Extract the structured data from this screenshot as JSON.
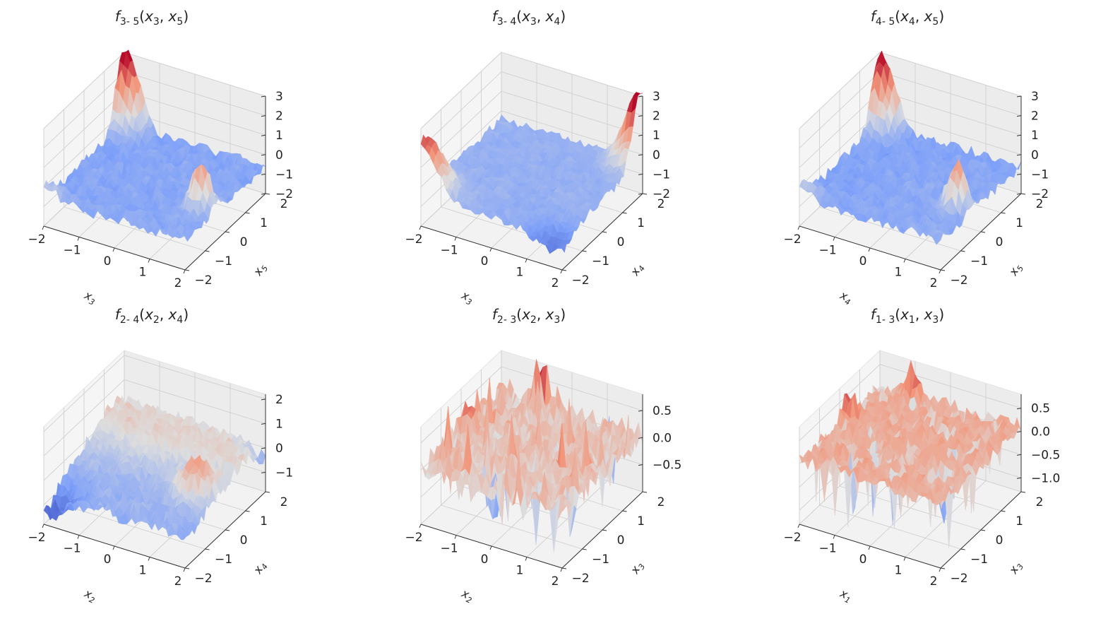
{
  "figure": {
    "title": ""
  },
  "chart_data": [
    {
      "type": "surface3d",
      "title_func": "f",
      "title_sub": "3- 5",
      "title_args": [
        "x",
        "3",
        "x",
        "5"
      ],
      "title": "f3- 5(x3, x5)",
      "xlabel": "x3",
      "ylabel": "x5",
      "zlabel": "",
      "xticks": [
        "−2",
        "−1",
        "0",
        "1",
        "2"
      ],
      "yticks": [
        "−2",
        "−1",
        "0",
        "1",
        "2"
      ],
      "zticks": [
        "−2",
        "−1",
        "0",
        "1",
        "2",
        "3"
      ],
      "xlim": [
        -2,
        2
      ],
      "ylim": [
        -2,
        2
      ],
      "zlim": [
        -2,
        3
      ],
      "shape": "corner_spikes_back_and_right",
      "peaks": [
        {
          "x": -2,
          "y": 2,
          "z": 3.4
        },
        {
          "x": 1.5,
          "y": -0.5,
          "z": 1.3
        }
      ],
      "colormap": "coolwarm"
    },
    {
      "type": "surface3d",
      "title_func": "f",
      "title_sub": "3- 4",
      "title_args": [
        "x",
        "3",
        "x",
        "4"
      ],
      "title": "f3- 4(x3, x4)",
      "xlabel": "x3",
      "ylabel": "x4",
      "zlabel": "",
      "xticks": [
        "−2",
        "−1",
        "0",
        "1",
        "2"
      ],
      "yticks": [
        "−2",
        "−1",
        "0",
        "1",
        "2"
      ],
      "zticks": [
        "−2",
        "−1",
        "0",
        "1",
        "2",
        "3"
      ],
      "xlim": [
        -2,
        2
      ],
      "ylim": [
        -2,
        2
      ],
      "zlim": [
        -2,
        3
      ],
      "shape": "valley_with_raised_ends",
      "peaks": [
        {
          "x": -2,
          "y": -2,
          "z": 1.8
        },
        {
          "x": 2,
          "y": 2,
          "z": 3.0
        }
      ],
      "colormap": "coolwarm"
    },
    {
      "type": "surface3d",
      "title_func": "f",
      "title_sub": "4- 5",
      "title_args": [
        "x",
        "4",
        "x",
        "5"
      ],
      "title": "f4- 5(x4, x5)",
      "xlabel": "x4",
      "ylabel": "x5",
      "zlabel": "",
      "xticks": [
        "−2",
        "−1",
        "0",
        "1",
        "2"
      ],
      "yticks": [
        "−2",
        "−1",
        "0",
        "1",
        "2"
      ],
      "zticks": [
        "−2",
        "−1",
        "0",
        "1",
        "2",
        "3"
      ],
      "xlim": [
        -2,
        2
      ],
      "ylim": [
        -2,
        2
      ],
      "zlim": [
        -2,
        3
      ],
      "shape": "corner_spikes_back_and_right",
      "peaks": [
        {
          "x": -2,
          "y": 2,
          "z": 3.5
        },
        {
          "x": 1.5,
          "y": -0.5,
          "z": 1.6
        }
      ],
      "colormap": "coolwarm"
    },
    {
      "type": "surface3d",
      "title_func": "f",
      "title_sub": "2- 4",
      "title_args": [
        "x",
        "2",
        "x",
        "4"
      ],
      "title": "f2- 4(x2, x4)",
      "xlabel": "x2",
      "ylabel": "x4",
      "zlabel": "",
      "xticks": [
        "−2",
        "−1",
        "0",
        "1",
        "2"
      ],
      "yticks": [
        "−2",
        "−1",
        "0",
        "1",
        "2"
      ],
      "zticks": [
        "−1",
        "0",
        "1",
        "2"
      ],
      "xlim": [
        -2,
        2
      ],
      "ylim": [
        -2,
        2
      ],
      "zlim": [
        -1.8,
        2.2
      ],
      "shape": "ridge_back_and_right",
      "peaks": [
        {
          "x": -1,
          "y": 2,
          "z": 2.0
        },
        {
          "x": 1.5,
          "y": -0.5,
          "z": 1.2
        }
      ],
      "colormap": "coolwarm"
    },
    {
      "type": "surface3d",
      "title_func": "f",
      "title_sub": "2- 3",
      "title_args": [
        "x",
        "2",
        "x",
        "3"
      ],
      "title": "f2- 3(x2, x3)",
      "xlabel": "x2",
      "ylabel": "x3",
      "zlabel": "",
      "xticks": [
        "−2",
        "−1",
        "0",
        "1",
        "2"
      ],
      "yticks": [
        "−2",
        "−1",
        "0",
        "1",
        "2"
      ],
      "zticks": [
        "−0.5",
        "0.0",
        "0.5"
      ],
      "xlim": [
        -2,
        2
      ],
      "ylim": [
        -2,
        2
      ],
      "zlim": [
        -1.0,
        0.8
      ],
      "shape": "noisy_spikes",
      "peaks": [
        {
          "x": -1,
          "y": 2,
          "z": 0.8
        },
        {
          "x": -0.3,
          "y": -1,
          "z": -0.9
        }
      ],
      "colormap": "coolwarm"
    },
    {
      "type": "surface3d",
      "title_func": "f",
      "title_sub": "1- 3",
      "title_args": [
        "x",
        "1",
        "x",
        "3"
      ],
      "title": "f1- 3(x1, x3)",
      "xlabel": "x1",
      "ylabel": "x3",
      "zlabel": "",
      "xticks": [
        "−2",
        "−1",
        "0",
        "1",
        "2"
      ],
      "yticks": [
        "−2",
        "−1",
        "0",
        "1",
        "2"
      ],
      "zticks": [
        "−1.0",
        "−0.5",
        "0.0",
        "0.5"
      ],
      "xlim": [
        -2,
        2
      ],
      "ylim": [
        -2,
        2
      ],
      "zlim": [
        -1.3,
        0.8
      ],
      "shape": "noisy_spikes_down",
      "peaks": [
        {
          "x": -1,
          "y": 2,
          "z": 0.8
        },
        {
          "x": 1.3,
          "y": -0.5,
          "z": -1.2
        }
      ],
      "colormap": "coolwarm"
    }
  ]
}
